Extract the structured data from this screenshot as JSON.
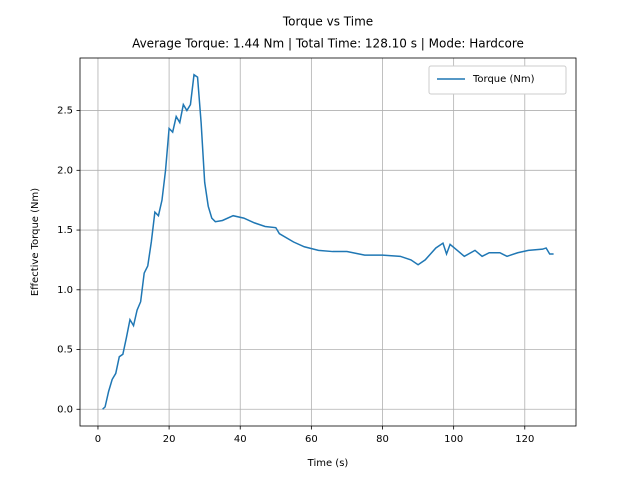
{
  "chart_data": {
    "type": "line",
    "title": "Torque vs Time",
    "subtitle": "Average Torque: 1.44 Nm | Total Time: 128.10 s | Mode: Hardcore",
    "x_label": "Time (s)",
    "y_label": "Effective Torque (Nm)",
    "x": [
      1.3,
      2,
      3,
      4,
      5,
      6,
      7,
      8,
      9,
      10,
      11,
      12,
      13,
      14,
      15,
      16,
      17,
      18,
      19,
      20,
      21,
      22,
      23,
      24,
      25,
      26,
      27,
      28,
      29,
      30,
      31,
      32,
      33,
      35,
      38,
      41,
      44,
      47,
      50,
      51,
      55,
      58,
      62,
      66,
      70,
      75,
      80,
      85,
      88,
      90,
      92,
      95,
      97,
      98,
      99,
      101,
      103,
      106,
      108,
      110,
      113,
      115,
      118,
      121,
      125,
      126,
      127,
      128.1
    ],
    "series": [
      {
        "name": "Torque (Nm)",
        "color": "#1f77b4",
        "values": [
          0,
          0.02,
          0.15,
          0.25,
          0.3,
          0.44,
          0.46,
          0.6,
          0.75,
          0.7,
          0.83,
          0.9,
          1.14,
          1.2,
          1.4,
          1.65,
          1.62,
          1.75,
          2.0,
          2.35,
          2.32,
          2.45,
          2.4,
          2.55,
          2.5,
          2.55,
          2.8,
          2.78,
          2.4,
          1.9,
          1.7,
          1.6,
          1.57,
          1.58,
          1.62,
          1.6,
          1.56,
          1.53,
          1.52,
          1.47,
          1.4,
          1.36,
          1.33,
          1.32,
          1.32,
          1.29,
          1.29,
          1.28,
          1.25,
          1.21,
          1.25,
          1.35,
          1.39,
          1.3,
          1.38,
          1.33,
          1.28,
          1.33,
          1.28,
          1.31,
          1.31,
          1.28,
          1.31,
          1.33,
          1.34,
          1.35,
          1.3,
          1.3
        ]
      }
    ],
    "xlim": [
      -5.05,
      134.4
    ],
    "ylim": [
      -0.14,
      2.94
    ],
    "xticks": [
      0,
      20,
      40,
      60,
      80,
      100,
      120
    ],
    "yticks": [
      {
        "value": 0,
        "label": "0.0"
      },
      {
        "value": 0.5,
        "label": "0.5"
      },
      {
        "value": 1,
        "label": "1.0"
      },
      {
        "value": 1.5,
        "label": "1.5"
      },
      {
        "value": 2,
        "label": "2.0"
      },
      {
        "value": 2.5,
        "label": "2.5"
      }
    ],
    "grid": true,
    "legend": "upper right"
  }
}
